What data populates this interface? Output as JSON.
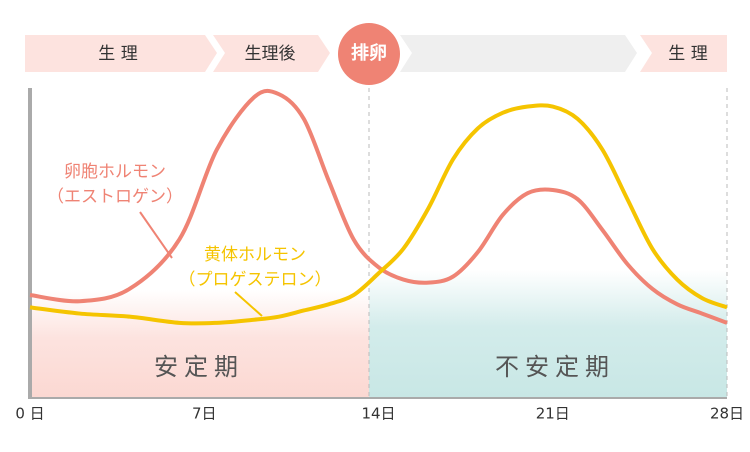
{
  "chart_data": {
    "type": "line",
    "phases": [
      "生 理",
      "生理後",
      "排卵",
      "生 理"
    ],
    "regions": [
      "安定期",
      "不安定期"
    ],
    "x": [
      0,
      2,
      4,
      6,
      7.5,
      9,
      10,
      11,
      12,
      13,
      14,
      15,
      16,
      17,
      18,
      19,
      20,
      21,
      22,
      23,
      24,
      25,
      26,
      27,
      28
    ],
    "series": [
      {
        "label": [
          "卵胞ホルモン",
          "（エストロゲン）"
        ],
        "color": "#ef8374",
        "values": [
          33,
          31,
          35,
          51,
          80,
          97,
          98,
          90,
          70,
          51,
          42,
          38,
          37,
          39,
          47,
          59,
          66,
          67,
          64,
          54,
          43,
          35,
          30,
          27,
          24
        ]
      },
      {
        "label": [
          "黄体ホルモン",
          "（プロゲステロン）"
        ],
        "color": "#f5c400",
        "values": [
          29,
          27,
          26,
          24,
          24,
          25,
          26,
          28,
          30,
          33,
          40,
          48,
          61,
          77,
          87,
          92,
          94,
          94,
          90,
          80,
          64,
          48,
          38,
          32,
          29
        ]
      }
    ],
    "xlim": [
      0,
      28
    ],
    "ylim": [
      0,
      100
    ],
    "xticks": [
      {
        "value": 0,
        "label": "0 日"
      },
      {
        "value": 7,
        "label": "7日"
      },
      {
        "value": 14,
        "label": "14日"
      },
      {
        "value": 21,
        "label": "21日"
      },
      {
        "value": 28,
        "label": "28日"
      }
    ]
  }
}
